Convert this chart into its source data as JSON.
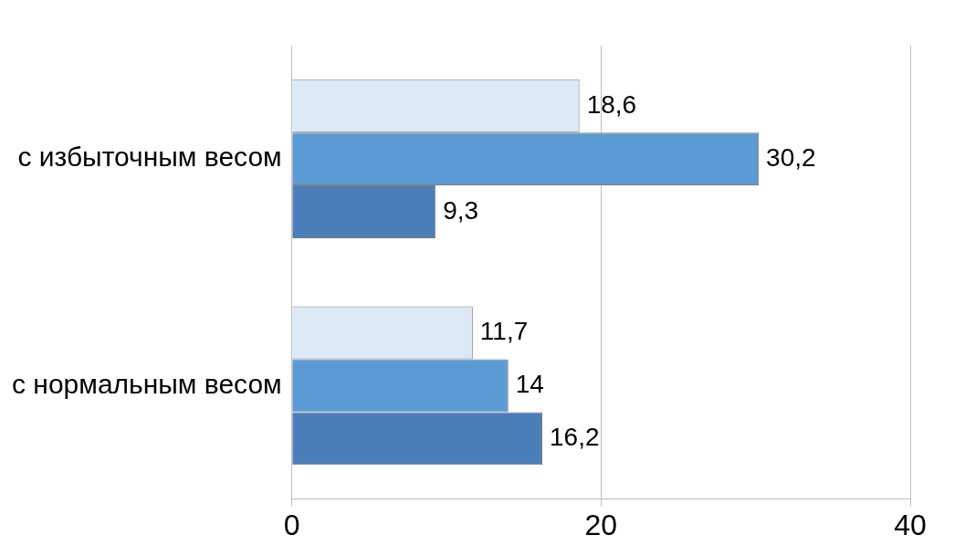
{
  "chart_data": {
    "type": "bar",
    "orientation": "horizontal",
    "categories": [
      "с избыточным весом",
      "с нормальным весом"
    ],
    "series": [
      {
        "color": "#dce9f7",
        "values": [
          18.6,
          11.7
        ],
        "value_labels": [
          "18,6",
          "11,7"
        ]
      },
      {
        "color": "#5b9bd5",
        "values": [
          30.2,
          14
        ],
        "value_labels": [
          "30,2",
          "14"
        ]
      },
      {
        "color": "#4a7ebb",
        "values": [
          9.3,
          16.2
        ],
        "value_labels": [
          "9,3",
          "16,2"
        ]
      }
    ],
    "xlim": [
      0,
      40
    ],
    "xticks": [
      0,
      20,
      40
    ],
    "grid": "x"
  }
}
